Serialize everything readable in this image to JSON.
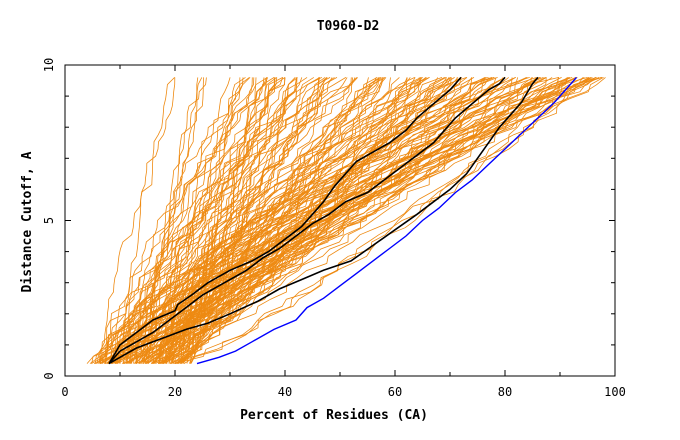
{
  "chart_data": {
    "type": "line",
    "title": "T0960-D2",
    "xlabel": "Percent of Residues (CA)",
    "ylabel": "Distance Cutoff, A",
    "xlim": [
      0,
      100
    ],
    "ylim": [
      0,
      10
    ],
    "x_ticks": [
      "0",
      "20",
      "40",
      "60",
      "80",
      "100"
    ],
    "y_ticks": [
      "0",
      "5",
      "10"
    ],
    "grid": false,
    "colors": {
      "background_models": "#ee8a12",
      "highlight_black": "#000000",
      "highlight_blue": "#0000ff"
    },
    "series": [
      {
        "color": "blue",
        "x": [
          24,
          28,
          31,
          34,
          38,
          42,
          44,
          47,
          50,
          53,
          56,
          59,
          62,
          65,
          68,
          71,
          74,
          77,
          80,
          83,
          86,
          89,
          91,
          93
        ],
        "y": [
          0.4,
          0.6,
          0.8,
          1.1,
          1.5,
          1.8,
          2.2,
          2.5,
          2.9,
          3.3,
          3.7,
          4.1,
          4.5,
          5.0,
          5.4,
          5.9,
          6.3,
          6.8,
          7.3,
          7.8,
          8.3,
          8.8,
          9.2,
          9.6
        ]
      },
      {
        "color": "black",
        "x": [
          8,
          10,
          13,
          16,
          19,
          22,
          26,
          30,
          35,
          39,
          43,
          47,
          52,
          56,
          60,
          64,
          67,
          70,
          73,
          75,
          77,
          79,
          81,
          83,
          84,
          85,
          86
        ],
        "y": [
          0.4,
          0.6,
          0.9,
          1.1,
          1.3,
          1.5,
          1.7,
          2.0,
          2.4,
          2.8,
          3.1,
          3.4,
          3.7,
          4.2,
          4.7,
          5.2,
          5.6,
          6.0,
          6.5,
          7.0,
          7.5,
          8.0,
          8.4,
          8.8,
          9.1,
          9.4,
          9.6
        ]
      },
      {
        "color": "black",
        "x": [
          8,
          10,
          13,
          16,
          19,
          22,
          25,
          29,
          33,
          36,
          39,
          42,
          45,
          48,
          51,
          55,
          58,
          61,
          64,
          67,
          69,
          71,
          73,
          75,
          77,
          79,
          80
        ],
        "y": [
          0.4,
          0.8,
          1.1,
          1.4,
          1.8,
          2.2,
          2.6,
          3.0,
          3.4,
          3.8,
          4.1,
          4.5,
          4.9,
          5.2,
          5.6,
          5.9,
          6.3,
          6.7,
          7.1,
          7.5,
          7.9,
          8.3,
          8.6,
          8.9,
          9.2,
          9.4,
          9.6
        ]
      },
      {
        "color": "black",
        "x": [
          8,
          10,
          13,
          16,
          20,
          20.5,
          23,
          26,
          30,
          34,
          37,
          40,
          43,
          45,
          47,
          49,
          51,
          53,
          56,
          59,
          62,
          64,
          66,
          68,
          70,
          71,
          72
        ],
        "y": [
          0.4,
          1.0,
          1.4,
          1.8,
          2.1,
          2.3,
          2.6,
          3.0,
          3.4,
          3.7,
          4.0,
          4.4,
          4.8,
          5.2,
          5.6,
          6.1,
          6.5,
          6.9,
          7.2,
          7.5,
          7.9,
          8.3,
          8.6,
          8.9,
          9.2,
          9.4,
          9.6
        ]
      }
    ]
  }
}
